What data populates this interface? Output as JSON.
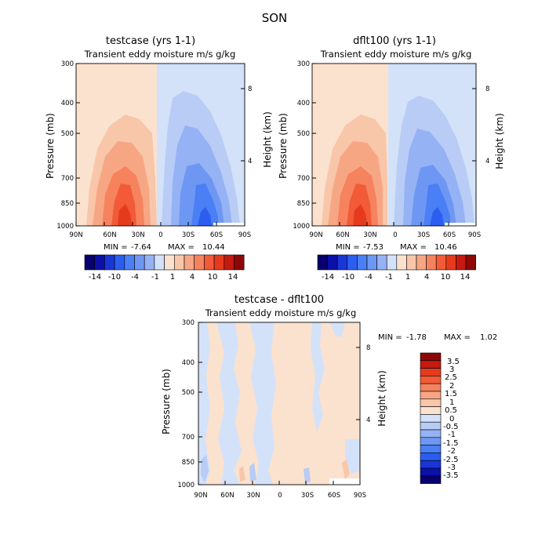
{
  "figure_title": "SON",
  "chart_data": [
    {
      "type": "heatmap",
      "title": "testcase (yrs 1-1)",
      "subtitle": "Transient eddy moisture m/s g/kg",
      "ylabel": "Pressure (mb)",
      "ylabel_right": "Height (km)",
      "x_ticks": [
        "90N",
        "60N",
        "30N",
        "0",
        "30S",
        "60S",
        "90S"
      ],
      "y_ticks": [
        "300",
        "400",
        "500",
        "700",
        "850",
        "1000"
      ],
      "y_right_ticks": [
        "8",
        "4"
      ],
      "min_label": "MIN =",
      "min_value": "-7.64",
      "max_label": "MAX =",
      "max_value": "10.44",
      "colorbar": {
        "orientation": "horizontal",
        "labels": [
          "-14",
          "-10",
          "-4",
          "-1",
          "1",
          "4",
          "10",
          "14"
        ]
      }
    },
    {
      "type": "heatmap",
      "title": "dflt100 (yrs 1-1)",
      "subtitle": "Transient eddy moisture m/s g/kg",
      "ylabel": "Pressure (mb)",
      "ylabel_right": "Height (km)",
      "x_ticks": [
        "90N",
        "60N",
        "30N",
        "0",
        "30S",
        "60S",
        "90S"
      ],
      "y_ticks": [
        "300",
        "400",
        "500",
        "700",
        "850",
        "1000"
      ],
      "y_right_ticks": [
        "8",
        "4"
      ],
      "min_label": "MIN =",
      "min_value": "-7.53",
      "max_label": "MAX =",
      "max_value": "10.46",
      "colorbar": {
        "orientation": "horizontal",
        "labels": [
          "-14",
          "-10",
          "-4",
          "-1",
          "1",
          "4",
          "10",
          "14"
        ]
      }
    },
    {
      "type": "heatmap",
      "title": "testcase - dflt100",
      "subtitle": "Transient eddy moisture m/s g/kg",
      "ylabel": "Pressure (mb)",
      "ylabel_right": "Height (km)",
      "x_ticks": [
        "90N",
        "60N",
        "30N",
        "0",
        "30S",
        "60S",
        "90S"
      ],
      "y_ticks": [
        "300",
        "400",
        "500",
        "700",
        "850",
        "1000"
      ],
      "y_right_ticks": [
        "8",
        "4"
      ],
      "min_label": "MIN =",
      "min_value": "-1.78",
      "max_label": "MAX =",
      "max_value": "1.02",
      "colorbar": {
        "orientation": "vertical",
        "labels": [
          "3.5",
          "3",
          "2.5",
          "2",
          "1.5",
          "1",
          "0.5",
          "0",
          "-0.5",
          "-1",
          "-1.5",
          "-2",
          "-2.5",
          "-3",
          "-3.5"
        ]
      }
    }
  ],
  "colors": {
    "diverging": [
      "#08006e",
      "#0a10a8",
      "#1a36d6",
      "#2b5ef0",
      "#4a7ff5",
      "#6d97f3",
      "#95b2f5",
      "#b8ccf5",
      "#d3e2f9",
      "#fbe2cf",
      "#f8c6a9",
      "#f7a684",
      "#f6825e",
      "#f35a37",
      "#e63a1e",
      "#c41a10",
      "#8e0707"
    ],
    "horizontal_bar": [
      "#08006e",
      "#0a10a8",
      "#1a36d6",
      "#2b5ef0",
      "#4a7ff5",
      "#6d97f3",
      "#95b2f5",
      "#d3e2f9",
      "#fbe2cf",
      "#f8c6a9",
      "#f7a684",
      "#f6825e",
      "#f35a37",
      "#e63a1e",
      "#c41a10",
      "#8e0707"
    ],
    "vertical_bar": [
      "#8e0707",
      "#c41a10",
      "#e63a1e",
      "#f35a37",
      "#f6825e",
      "#f7a684",
      "#f8c6a9",
      "#fbe2cf",
      "#d3e2f9",
      "#b8ccf5",
      "#95b2f5",
      "#6d97f3",
      "#4a7ff5",
      "#2b5ef0",
      "#1a36d6",
      "#0a10a8",
      "#08006e"
    ]
  }
}
